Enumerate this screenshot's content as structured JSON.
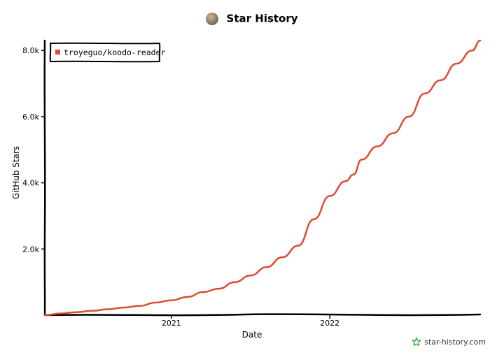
{
  "chart_data": {
    "type": "line",
    "title": "Star History",
    "xlabel": "Date",
    "ylabel": "GitHub Stars",
    "ylim": [
      0,
      8300
    ],
    "x_tick_labels": [
      "2021",
      "2022"
    ],
    "y_tick_labels": [
      "2.0k",
      "4.0k",
      "6.0k",
      "8.0k"
    ],
    "y_ticks": [
      2000,
      4000,
      6000,
      8000
    ],
    "x_ticks": [
      2021.0,
      2022.0
    ],
    "xlim": [
      2020.2,
      2022.95
    ],
    "legend_position": "top-left",
    "series": [
      {
        "name": "troyeguo/koodo-reader",
        "color": "#dd4b2f",
        "x": [
          2020.2,
          2020.3,
          2020.4,
          2020.5,
          2020.6,
          2020.7,
          2020.8,
          2020.9,
          2021.0,
          2021.1,
          2021.2,
          2021.3,
          2021.4,
          2021.5,
          2021.6,
          2021.7,
          2021.8,
          2021.9,
          2022.0,
          2022.1,
          2022.15,
          2022.2,
          2022.3,
          2022.4,
          2022.5,
          2022.6,
          2022.7,
          2022.8,
          2022.9,
          2022.95
        ],
        "values": [
          0,
          50,
          90,
          130,
          180,
          230,
          280,
          380,
          450,
          550,
          700,
          800,
          1000,
          1200,
          1450,
          1750,
          2100,
          2900,
          3600,
          4050,
          4250,
          4700,
          5100,
          5500,
          6000,
          6700,
          7100,
          7600,
          8000,
          8300
        ]
      }
    ]
  },
  "watermark": "star-history.com"
}
